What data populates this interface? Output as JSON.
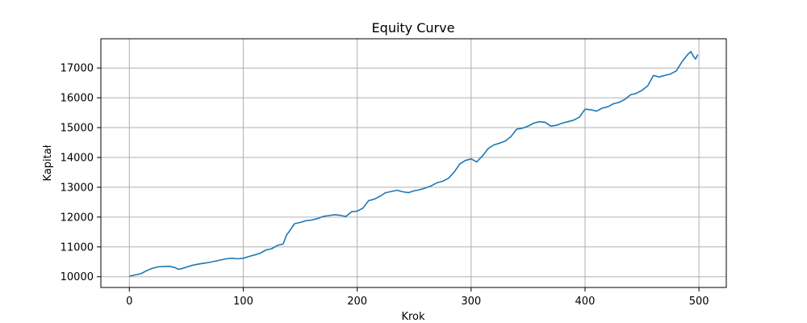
{
  "chart_data": {
    "type": "line",
    "title": "Equity Curve",
    "xlabel": "Krok",
    "ylabel": "Kapitał",
    "xlim": [
      -25,
      524
    ],
    "ylim": [
      9640,
      17980
    ],
    "xticks": [
      0,
      100,
      200,
      300,
      400,
      500
    ],
    "yticks": [
      10000,
      11000,
      12000,
      13000,
      14000,
      15000,
      16000,
      17000
    ],
    "grid": true,
    "line_color": "#1f77b4",
    "series": [
      {
        "x": [
          0,
          5,
          10,
          15,
          20,
          25,
          30,
          35,
          40,
          43,
          46,
          50,
          55,
          60,
          65,
          70,
          75,
          80,
          85,
          90,
          95,
          100,
          105,
          110,
          115,
          120,
          125,
          130,
          135,
          138,
          140,
          145,
          150,
          155,
          160,
          165,
          170,
          175,
          180,
          185,
          190,
          195,
          200,
          205,
          210,
          215,
          220,
          225,
          230,
          235,
          240,
          245,
          250,
          255,
          260,
          265,
          270,
          275,
          280,
          285,
          290,
          295,
          300,
          305,
          310,
          315,
          320,
          325,
          330,
          335,
          340,
          345,
          350,
          355,
          360,
          365,
          370,
          375,
          380,
          385,
          390,
          395,
          400,
          405,
          410,
          415,
          420,
          425,
          430,
          435,
          440,
          445,
          450,
          455,
          460,
          465,
          470,
          475,
          480,
          485,
          490,
          493,
          495,
          497,
          499
        ],
        "y": [
          10020,
          10060,
          10100,
          10200,
          10280,
          10330,
          10340,
          10350,
          10310,
          10250,
          10270,
          10320,
          10380,
          10420,
          10450,
          10480,
          10520,
          10560,
          10600,
          10620,
          10600,
          10620,
          10680,
          10730,
          10790,
          10900,
          10940,
          11050,
          11100,
          11400,
          11500,
          11780,
          11820,
          11880,
          11900,
          11950,
          12020,
          12050,
          12080,
          12060,
          12020,
          12180,
          12200,
          12300,
          12550,
          12600,
          12700,
          12820,
          12860,
          12900,
          12850,
          12820,
          12880,
          12920,
          12980,
          13050,
          13150,
          13200,
          13300,
          13500,
          13780,
          13900,
          13950,
          13850,
          14050,
          14300,
          14420,
          14480,
          14550,
          14700,
          14950,
          14980,
          15050,
          15150,
          15200,
          15180,
          15050,
          15080,
          15150,
          15200,
          15250,
          15350,
          15620,
          15600,
          15550,
          15650,
          15700,
          15800,
          15850,
          15950,
          16100,
          16150,
          16250,
          16400,
          16750,
          16700,
          16750,
          16800,
          16900,
          17200,
          17450,
          17550,
          17400,
          17300,
          17450
        ]
      }
    ]
  }
}
